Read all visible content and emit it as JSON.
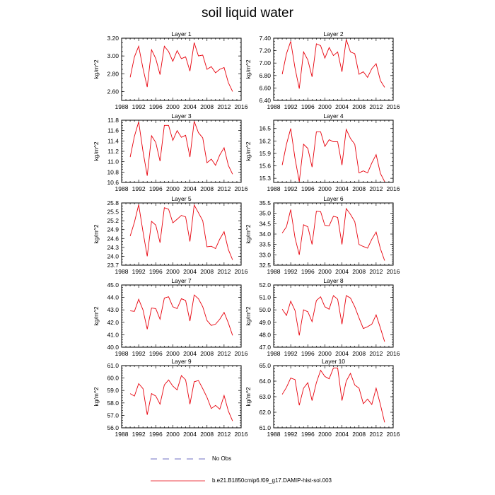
{
  "title": "soil liquid water",
  "colors": {
    "series": "#e8000b",
    "obs_dash": "#4040b0",
    "axis": "#000000"
  },
  "legend": {
    "obs_label": "No Obs",
    "model_label": "b.e21.B1850cmip6.f09_g17.DAMIP-hist-sol.003"
  },
  "chart_data": [
    {
      "type": "line",
      "title": "Layer 1",
      "ylabel": "kg/m^2",
      "xlim": [
        1988,
        2016
      ],
      "xticks": [
        1988,
        1992,
        1996,
        2000,
        2004,
        2008,
        2012,
        2016
      ],
      "ylim": [
        2.5,
        3.2
      ],
      "yticks": [
        2.6,
        2.8,
        3.0,
        3.2
      ],
      "ydec": 2,
      "yminor": 0.05,
      "series": [
        {
          "x": [
            1990,
            1991,
            1992,
            1993,
            1994,
            1995,
            1996,
            1997,
            1998,
            1999,
            2000,
            2001,
            2002,
            2003,
            2004,
            2005,
            2006,
            2007,
            2008,
            2009,
            2010,
            2011,
            2012,
            2013,
            2014
          ],
          "y": [
            2.76,
            2.99,
            3.11,
            2.86,
            2.65,
            3.07,
            2.97,
            2.79,
            3.11,
            3.05,
            2.94,
            3.06,
            2.97,
            2.99,
            2.83,
            3.15,
            3.0,
            3.01,
            2.85,
            2.88,
            2.81,
            2.85,
            2.87,
            2.7,
            2.6
          ]
        }
      ]
    },
    {
      "type": "line",
      "title": "Layer 2",
      "ylabel": "kg/m^2",
      "xlim": [
        1988,
        2016
      ],
      "xticks": [
        1988,
        1992,
        1996,
        2000,
        2004,
        2008,
        2012,
        2016
      ],
      "ylim": [
        6.4,
        7.4
      ],
      "yticks": [
        6.4,
        6.6,
        6.8,
        7.0,
        7.2,
        7.4
      ],
      "ydec": 2,
      "yminor": 0.05,
      "series": [
        {
          "x": [
            1990,
            1991,
            1992,
            1993,
            1994,
            1995,
            1996,
            1997,
            1998,
            1999,
            2000,
            2001,
            2002,
            2003,
            2004,
            2005,
            2006,
            2007,
            2008,
            2009,
            2010,
            2011,
            2012,
            2013,
            2014
          ],
          "y": [
            6.82,
            7.15,
            7.35,
            6.92,
            6.59,
            7.18,
            7.05,
            6.78,
            7.31,
            7.28,
            7.08,
            7.25,
            7.12,
            7.18,
            6.86,
            7.38,
            7.18,
            7.15,
            6.82,
            6.86,
            6.77,
            6.91,
            6.99,
            6.72,
            6.61
          ]
        }
      ]
    },
    {
      "type": "line",
      "title": "Layer 3",
      "ylabel": "kg/m^2",
      "xlim": [
        1988,
        2016
      ],
      "xticks": [
        1988,
        1992,
        1996,
        2000,
        2004,
        2008,
        2012,
        2016
      ],
      "ylim": [
        10.6,
        11.8
      ],
      "yticks": [
        10.6,
        10.8,
        11.0,
        11.2,
        11.4,
        11.6,
        11.8
      ],
      "ydec": 1,
      "yminor": 0.05,
      "series": [
        {
          "x": [
            1990,
            1991,
            1992,
            1993,
            1994,
            1995,
            1996,
            1997,
            1998,
            1999,
            2000,
            2001,
            2002,
            2003,
            2004,
            2005,
            2006,
            2007,
            2008,
            2009,
            2010,
            2011,
            2012,
            2013,
            2014
          ],
          "y": [
            11.09,
            11.49,
            11.77,
            11.2,
            10.73,
            11.5,
            11.37,
            11.01,
            11.7,
            11.7,
            11.41,
            11.6,
            11.47,
            11.51,
            11.09,
            11.78,
            11.56,
            11.46,
            10.98,
            11.05,
            10.93,
            11.13,
            11.27,
            10.93,
            10.76
          ]
        }
      ]
    },
    {
      "type": "line",
      "title": "Layer 4",
      "ylabel": "kg/m^2",
      "xlim": [
        1988,
        2016
      ],
      "xticks": [
        1988,
        1992,
        1996,
        2000,
        2004,
        2008,
        2012,
        2016
      ],
      "ylim": [
        15.2,
        16.7
      ],
      "yticks": [
        15.3,
        15.6,
        15.9,
        16.2,
        16.5
      ],
      "ydec": 1,
      "yminor": 0.1,
      "series": [
        {
          "x": [
            1990,
            1991,
            1992,
            1993,
            1994,
            1995,
            1996,
            1997,
            1998,
            1999,
            2000,
            2001,
            2002,
            2003,
            2004,
            2005,
            2006,
            2007,
            2008,
            2009,
            2010,
            2011,
            2012,
            2013,
            2014
          ],
          "y": [
            15.62,
            16.12,
            16.5,
            15.78,
            15.22,
            16.12,
            16.02,
            15.57,
            16.42,
            16.42,
            16.07,
            16.23,
            16.18,
            16.18,
            15.62,
            16.48,
            16.26,
            16.12,
            15.43,
            15.48,
            15.43,
            15.67,
            15.87,
            15.42,
            15.22
          ]
        }
      ]
    },
    {
      "type": "line",
      "title": "Layer 5",
      "ylabel": "kg/m^2",
      "xlim": [
        1988,
        2016
      ],
      "xticks": [
        1988,
        1992,
        1996,
        2000,
        2004,
        2008,
        2012,
        2016
      ],
      "ylim": [
        23.7,
        25.8
      ],
      "yticks": [
        23.7,
        24.0,
        24.3,
        24.6,
        24.9,
        25.2,
        25.5,
        25.8
      ],
      "ydec": 1,
      "yminor": 0.1,
      "series": [
        {
          "x": [
            1990,
            1991,
            1992,
            1993,
            1994,
            1995,
            1996,
            1997,
            1998,
            1999,
            2000,
            2001,
            2002,
            2003,
            2004,
            2005,
            2006,
            2007,
            2008,
            2009,
            2010,
            2011,
            2012,
            2013,
            2014
          ],
          "y": [
            24.68,
            25.15,
            25.74,
            24.83,
            24.0,
            25.18,
            25.05,
            24.46,
            25.64,
            25.59,
            25.13,
            25.25,
            25.38,
            25.33,
            24.5,
            25.73,
            25.47,
            25.2,
            24.32,
            24.34,
            24.26,
            24.58,
            24.83,
            24.23,
            23.88
          ]
        }
      ]
    },
    {
      "type": "line",
      "title": "Layer 6",
      "ylabel": "kg/m^2",
      "xlim": [
        1988,
        2016
      ],
      "xticks": [
        1988,
        1992,
        1996,
        2000,
        2004,
        2008,
        2012,
        2016
      ],
      "ylim": [
        32.5,
        35.5
      ],
      "yticks": [
        32.5,
        33.0,
        33.5,
        34.0,
        34.5,
        35.0,
        35.5
      ],
      "ydec": 1,
      "yminor": 0.1,
      "series": [
        {
          "x": [
            1990,
            1991,
            1992,
            1993,
            1994,
            1995,
            1996,
            1997,
            1998,
            1999,
            2000,
            2001,
            2002,
            2003,
            2004,
            2005,
            2006,
            2007,
            2008,
            2009,
            2010,
            2011,
            2012,
            2013,
            2014
          ],
          "y": [
            34.05,
            34.35,
            35.18,
            33.82,
            33.0,
            34.45,
            34.35,
            33.5,
            35.1,
            35.08,
            34.42,
            34.4,
            34.86,
            34.8,
            33.5,
            35.23,
            34.95,
            34.6,
            33.5,
            33.4,
            33.32,
            33.75,
            34.1,
            33.3,
            32.72
          ]
        }
      ]
    },
    {
      "type": "line",
      "title": "Layer 7",
      "ylabel": "kg/m^2",
      "xlim": [
        1988,
        2016
      ],
      "xticks": [
        1988,
        1992,
        1996,
        2000,
        2004,
        2008,
        2012,
        2016
      ],
      "ylim": [
        40.0,
        45.0
      ],
      "yticks": [
        40.0,
        41.0,
        42.0,
        43.0,
        44.0,
        45.0
      ],
      "ydec": 1,
      "yminor": 0.2,
      "series": [
        {
          "x": [
            1990,
            1991,
            1992,
            1993,
            1994,
            1995,
            1996,
            1997,
            1998,
            1999,
            2000,
            2001,
            2002,
            2003,
            2004,
            2005,
            2006,
            2007,
            2008,
            2009,
            2010,
            2011,
            2012,
            2013,
            2014
          ],
          "y": [
            42.92,
            42.88,
            43.85,
            43.0,
            41.45,
            43.15,
            43.1,
            42.25,
            43.95,
            44.05,
            43.25,
            43.1,
            43.9,
            43.75,
            42.1,
            44.2,
            43.9,
            43.25,
            42.15,
            41.75,
            41.85,
            42.25,
            42.8,
            41.95,
            40.95
          ]
        }
      ]
    },
    {
      "type": "line",
      "title": "Layer 8",
      "ylabel": "kg/m^2",
      "xlim": [
        1988,
        2016
      ],
      "xticks": [
        1988,
        1992,
        1996,
        2000,
        2004,
        2008,
        2012,
        2016
      ],
      "ylim": [
        47.0,
        52.0
      ],
      "yticks": [
        47.0,
        48.0,
        49.0,
        50.0,
        51.0,
        52.0
      ],
      "ydec": 1,
      "yminor": 0.2,
      "series": [
        {
          "x": [
            1990,
            1991,
            1992,
            1993,
            1994,
            1995,
            1996,
            1997,
            1998,
            1999,
            2000,
            2001,
            2002,
            2003,
            2004,
            2005,
            2006,
            2007,
            2008,
            2009,
            2010,
            2011,
            2012,
            2013,
            2014
          ],
          "y": [
            50.05,
            49.55,
            50.7,
            49.95,
            47.95,
            50.0,
            49.85,
            49.05,
            50.75,
            51.05,
            50.25,
            50.05,
            51.15,
            50.85,
            48.85,
            51.15,
            50.95,
            50.25,
            49.35,
            48.5,
            48.65,
            48.85,
            49.6,
            48.55,
            47.45
          ]
        }
      ]
    },
    {
      "type": "line",
      "title": "Layer 9",
      "ylabel": "kg/m^2",
      "xlim": [
        1988,
        2016
      ],
      "xticks": [
        1988,
        1992,
        1996,
        2000,
        2004,
        2008,
        2012,
        2016
      ],
      "ylim": [
        56.0,
        61.0
      ],
      "yticks": [
        56.0,
        57.0,
        58.0,
        59.0,
        60.0,
        61.0
      ],
      "ydec": 1,
      "yminor": 0.2,
      "series": [
        {
          "x": [
            1990,
            1991,
            1992,
            1993,
            1994,
            1995,
            1996,
            1997,
            1998,
            1999,
            2000,
            2001,
            2002,
            2003,
            2004,
            2005,
            2006,
            2007,
            2008,
            2009,
            2010,
            2011,
            2012,
            2013,
            2014
          ],
          "y": [
            58.75,
            58.55,
            59.55,
            59.15,
            57.05,
            58.75,
            58.55,
            57.9,
            59.45,
            59.85,
            59.35,
            59.05,
            60.2,
            59.85,
            57.9,
            59.7,
            59.8,
            59.15,
            58.45,
            57.55,
            57.8,
            57.5,
            58.6,
            57.35,
            56.55
          ]
        }
      ]
    },
    {
      "type": "line",
      "title": "Layer 10",
      "ylabel": "kg/m^2",
      "xlim": [
        1988,
        2016
      ],
      "xticks": [
        1988,
        1992,
        1996,
        2000,
        2004,
        2008,
        2012,
        2016
      ],
      "ylim": [
        61.0,
        65.0
      ],
      "yticks": [
        61.0,
        62.0,
        63.0,
        64.0,
        65.0
      ],
      "ydec": 1,
      "yminor": 0.2,
      "series": [
        {
          "x": [
            1990,
            1991,
            1992,
            1993,
            1994,
            1995,
            1996,
            1997,
            1998,
            1999,
            2000,
            2001,
            2002,
            2003,
            2004,
            2005,
            2006,
            2007,
            2008,
            2009,
            2010,
            2011,
            2012,
            2013,
            2014
          ],
          "y": [
            63.15,
            63.6,
            64.2,
            64.1,
            62.45,
            63.55,
            63.9,
            62.75,
            63.9,
            64.7,
            64.3,
            64.15,
            64.85,
            64.85,
            62.75,
            64.0,
            64.5,
            63.75,
            63.55,
            62.55,
            62.85,
            62.5,
            63.55,
            62.5,
            61.35
          ]
        }
      ]
    }
  ]
}
